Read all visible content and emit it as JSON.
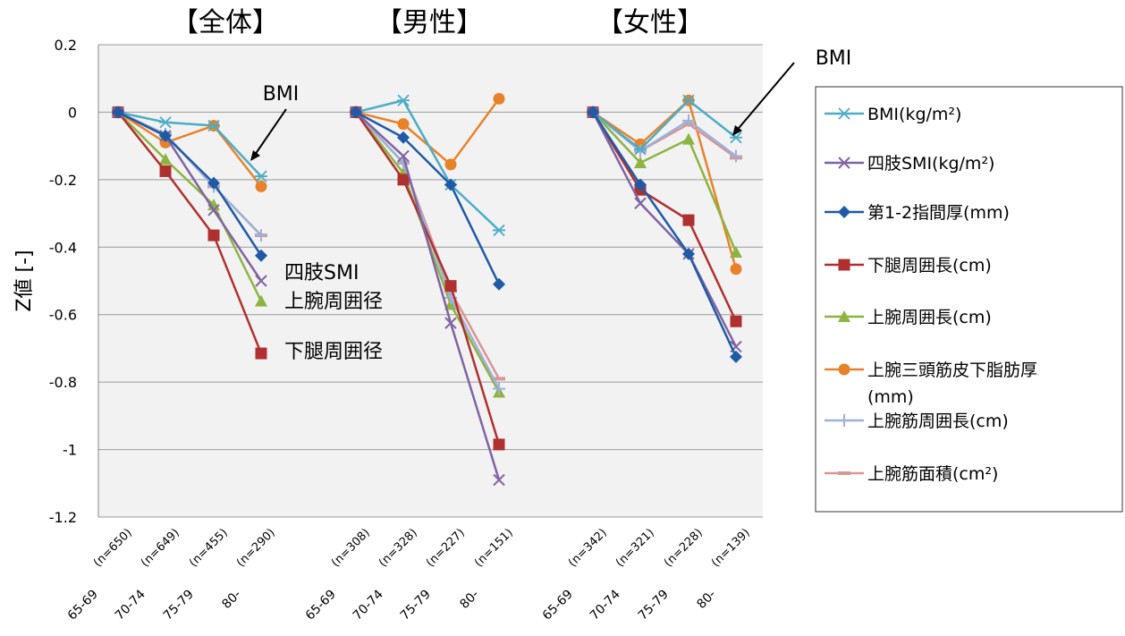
{
  "chart_data": {
    "type": "line",
    "ylabel": "Z値 [-]",
    "ylim": [
      -1.2,
      0.2
    ],
    "yticks": [
      "0.2",
      "0",
      "-0.2",
      "-0.4",
      "-0.6",
      "-0.8",
      "-1",
      "-1.2"
    ],
    "grid": true,
    "legend_position": "right",
    "panels": [
      {
        "title": "【全体】",
        "categories": [
          "65-69 (n=650)",
          "70-74 (n=649)",
          "75-79 (n=455)",
          "80- (n=290)"
        ],
        "series": {
          "bmi": [
            0,
            -0.03,
            -0.04,
            -0.19
          ],
          "smi": [
            0,
            -0.07,
            -0.29,
            -0.5
          ],
          "finger": [
            0,
            -0.07,
            -0.21,
            -0.425
          ],
          "calf": [
            0,
            -0.175,
            -0.365,
            -0.715
          ],
          "arm": [
            0,
            -0.14,
            -0.275,
            -0.56
          ],
          "triceps": [
            0,
            -0.09,
            -0.04,
            -0.22
          ],
          "armmuscle": [
            0,
            -0.065,
            -0.22,
            -0.365
          ],
          "armarea": [
            0,
            -0.065,
            -0.22,
            -0.365
          ]
        }
      },
      {
        "title": "【男性】",
        "categories": [
          "65-69 (n=308)",
          "70-74 (n=328)",
          "75-79 (n=227)",
          "80- (n=151)"
        ],
        "series": {
          "bmi": [
            0,
            0.035,
            -0.215,
            -0.35
          ],
          "smi": [
            0,
            -0.13,
            -0.625,
            -1.09
          ],
          "finger": [
            0,
            -0.075,
            -0.215,
            -0.51
          ],
          "calf": [
            0,
            -0.2,
            -0.515,
            -0.985
          ],
          "arm": [
            0,
            -0.18,
            -0.57,
            -0.83
          ],
          "triceps": [
            0,
            -0.035,
            -0.155,
            0.04
          ],
          "armmuscle": [
            0,
            -0.15,
            -0.55,
            -0.82
          ],
          "armarea": [
            0,
            -0.15,
            -0.53,
            -0.79
          ]
        }
      },
      {
        "title": "【女性】",
        "categories": [
          "65-69 (n=342)",
          "70-74 (n=321)",
          "75-79 (n=228)",
          "80- (n=139)"
        ],
        "series": {
          "bmi": [
            0,
            -0.11,
            0.035,
            -0.075
          ],
          "smi": [
            0,
            -0.27,
            -0.42,
            -0.695
          ],
          "finger": [
            0,
            -0.215,
            -0.42,
            -0.725
          ],
          "calf": [
            0,
            -0.23,
            -0.32,
            -0.62
          ],
          "arm": [
            0,
            -0.15,
            -0.08,
            -0.415
          ],
          "triceps": [
            0,
            -0.095,
            0.035,
            -0.465
          ],
          "armmuscle": [
            0,
            -0.115,
            -0.025,
            -0.13
          ],
          "armarea": [
            0,
            -0.115,
            -0.035,
            -0.135
          ]
        }
      }
    ],
    "legend": [
      {
        "key": "bmi",
        "label": "BMI(kg/m²)",
        "color": "#4BACC6",
        "marker": "asterisk"
      },
      {
        "key": "smi",
        "label": "四肢SMI(kg/m²)",
        "color": "#8064A2",
        "marker": "x"
      },
      {
        "key": "finger",
        "label": "第1-2指間厚(mm)",
        "color": "#1F5AA6",
        "marker": "diamond"
      },
      {
        "key": "calf",
        "label": "下腿周囲長(cm)",
        "color": "#B03030",
        "marker": "square"
      },
      {
        "key": "arm",
        "label": "上腕周囲長(cm)",
        "color": "#8DB440",
        "marker": "triangle"
      },
      {
        "key": "triceps",
        "label": "上腕三頭筋皮下脂肪厚 (mm)",
        "color": "#E8822A",
        "marker": "circle"
      },
      {
        "key": "armmuscle",
        "label": "上腕筋周囲長(cm)",
        "color": "#9DB0D8",
        "marker": "plus"
      },
      {
        "key": "armarea",
        "label": "上腕筋面積(cm²)",
        "color": "#D99694",
        "marker": "dash"
      }
    ],
    "annotations": {
      "bmi_left": "BMI",
      "smi_label": "四肢SMI",
      "arm_label": "上腕周囲径",
      "calf_label": "下腿周囲径",
      "bmi_right": "BMI"
    }
  }
}
